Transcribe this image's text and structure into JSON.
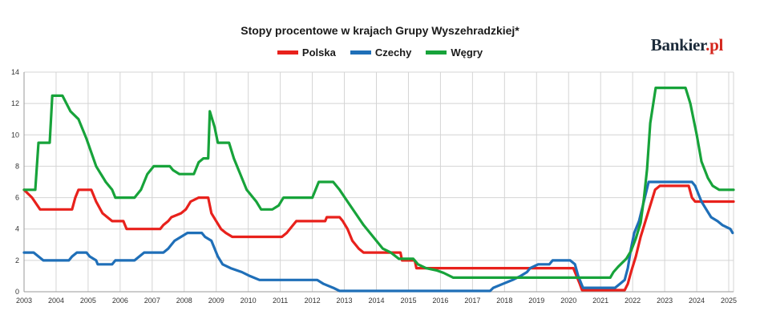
{
  "brand": {
    "name": "Bankier",
    "suffix": ".pl"
  },
  "chart_data": {
    "type": "line",
    "title": "Stopy procentowe w krajach  Grupy Wyszehradzkiej*",
    "xlabel": "",
    "ylabel": "",
    "xlim": [
      2003.0,
      2025.15
    ],
    "ylim": [
      0,
      14
    ],
    "grid": true,
    "legend_position": "top-center",
    "x_ticks": [
      "2003",
      "2004",
      "2005",
      "2006",
      "2007",
      "2008",
      "2009",
      "2010",
      "2011",
      "2012",
      "2013",
      "2014",
      "2015",
      "2016",
      "2017",
      "2018",
      "2019",
      "2020",
      "2021",
      "2022",
      "2023",
      "2024",
      "2025"
    ],
    "y_ticks": [
      "0",
      "2",
      "4",
      "6",
      "8",
      "10",
      "12",
      "14"
    ],
    "series": [
      {
        "name": "Polska",
        "color": "#e8211c",
        "points": [
          [
            2003.0,
            6.5
          ],
          [
            2003.25,
            6.0
          ],
          [
            2003.5,
            5.25
          ],
          [
            2004.5,
            5.25
          ],
          [
            2004.6,
            6.0
          ],
          [
            2004.7,
            6.5
          ],
          [
            2005.1,
            6.5
          ],
          [
            2005.25,
            5.75
          ],
          [
            2005.45,
            5.0
          ],
          [
            2005.6,
            4.75
          ],
          [
            2005.75,
            4.5
          ],
          [
            2006.1,
            4.5
          ],
          [
            2006.2,
            4.0
          ],
          [
            2007.25,
            4.0
          ],
          [
            2007.35,
            4.25
          ],
          [
            2007.5,
            4.5
          ],
          [
            2007.6,
            4.75
          ],
          [
            2007.9,
            5.0
          ],
          [
            2008.05,
            5.25
          ],
          [
            2008.2,
            5.75
          ],
          [
            2008.45,
            6.0
          ],
          [
            2008.75,
            6.0
          ],
          [
            2008.85,
            5.0
          ],
          [
            2009.0,
            4.5
          ],
          [
            2009.15,
            4.0
          ],
          [
            2009.3,
            3.75
          ],
          [
            2009.5,
            3.5
          ],
          [
            2011.05,
            3.5
          ],
          [
            2011.2,
            3.75
          ],
          [
            2011.4,
            4.25
          ],
          [
            2011.5,
            4.5
          ],
          [
            2012.4,
            4.5
          ],
          [
            2012.45,
            4.75
          ],
          [
            2012.85,
            4.75
          ],
          [
            2012.95,
            4.5
          ],
          [
            2013.1,
            4.0
          ],
          [
            2013.25,
            3.25
          ],
          [
            2013.45,
            2.75
          ],
          [
            2013.6,
            2.5
          ],
          [
            2014.75,
            2.5
          ],
          [
            2014.8,
            2.0
          ],
          [
            2015.2,
            2.0
          ],
          [
            2015.25,
            1.5
          ],
          [
            2020.15,
            1.5
          ],
          [
            2020.25,
            1.0
          ],
          [
            2020.35,
            0.5
          ],
          [
            2020.42,
            0.1
          ],
          [
            2021.75,
            0.1
          ],
          [
            2021.85,
            0.5
          ],
          [
            2021.95,
            1.25
          ],
          [
            2022.1,
            2.25
          ],
          [
            2022.25,
            3.5
          ],
          [
            2022.4,
            4.5
          ],
          [
            2022.55,
            5.5
          ],
          [
            2022.7,
            6.5
          ],
          [
            2022.85,
            6.75
          ],
          [
            2023.75,
            6.75
          ],
          [
            2023.85,
            6.0
          ],
          [
            2023.95,
            5.75
          ],
          [
            2025.15,
            5.75
          ]
        ]
      },
      {
        "name": "Czechy",
        "color": "#1f6fb8",
        "points": [
          [
            2003.0,
            2.5
          ],
          [
            2003.3,
            2.5
          ],
          [
            2003.45,
            2.25
          ],
          [
            2003.6,
            2.0
          ],
          [
            2004.4,
            2.0
          ],
          [
            2004.5,
            2.25
          ],
          [
            2004.65,
            2.5
          ],
          [
            2004.95,
            2.5
          ],
          [
            2005.05,
            2.25
          ],
          [
            2005.25,
            2.0
          ],
          [
            2005.3,
            1.75
          ],
          [
            2005.75,
            1.75
          ],
          [
            2005.85,
            2.0
          ],
          [
            2006.45,
            2.0
          ],
          [
            2006.6,
            2.25
          ],
          [
            2006.75,
            2.5
          ],
          [
            2007.35,
            2.5
          ],
          [
            2007.5,
            2.75
          ],
          [
            2007.6,
            3.0
          ],
          [
            2007.7,
            3.25
          ],
          [
            2007.9,
            3.5
          ],
          [
            2008.1,
            3.75
          ],
          [
            2008.55,
            3.75
          ],
          [
            2008.65,
            3.5
          ],
          [
            2008.85,
            3.25
          ],
          [
            2008.95,
            2.75
          ],
          [
            2009.05,
            2.25
          ],
          [
            2009.2,
            1.75
          ],
          [
            2009.45,
            1.5
          ],
          [
            2009.8,
            1.25
          ],
          [
            2010.05,
            1.0
          ],
          [
            2010.35,
            0.75
          ],
          [
            2012.15,
            0.75
          ],
          [
            2012.35,
            0.5
          ],
          [
            2012.65,
            0.25
          ],
          [
            2012.85,
            0.05
          ],
          [
            2017.55,
            0.05
          ],
          [
            2017.65,
            0.25
          ],
          [
            2017.95,
            0.5
          ],
          [
            2018.25,
            0.75
          ],
          [
            2018.5,
            1.0
          ],
          [
            2018.7,
            1.25
          ],
          [
            2018.8,
            1.5
          ],
          [
            2019.05,
            1.75
          ],
          [
            2019.4,
            1.75
          ],
          [
            2019.5,
            2.0
          ],
          [
            2020.05,
            2.0
          ],
          [
            2020.2,
            1.75
          ],
          [
            2020.3,
            1.0
          ],
          [
            2020.45,
            0.25
          ],
          [
            2021.45,
            0.25
          ],
          [
            2021.6,
            0.5
          ],
          [
            2021.75,
            0.75
          ],
          [
            2021.85,
            1.5
          ],
          [
            2021.95,
            2.75
          ],
          [
            2022.05,
            3.75
          ],
          [
            2022.2,
            4.5
          ],
          [
            2022.35,
            5.75
          ],
          [
            2022.5,
            7.0
          ],
          [
            2023.85,
            7.0
          ],
          [
            2023.95,
            6.75
          ],
          [
            2024.05,
            6.25
          ],
          [
            2024.15,
            5.75
          ],
          [
            2024.3,
            5.25
          ],
          [
            2024.45,
            4.75
          ],
          [
            2024.65,
            4.5
          ],
          [
            2024.8,
            4.25
          ],
          [
            2025.05,
            4.0
          ],
          [
            2025.12,
            3.75
          ]
        ]
      },
      {
        "name": "Węgry",
        "color": "#17a33a",
        "points": [
          [
            2003.0,
            6.5
          ],
          [
            2003.35,
            6.5
          ],
          [
            2003.45,
            9.5
          ],
          [
            2003.8,
            9.5
          ],
          [
            2003.88,
            12.5
          ],
          [
            2004.2,
            12.5
          ],
          [
            2004.45,
            11.5
          ],
          [
            2004.7,
            11.0
          ],
          [
            2004.95,
            9.75
          ],
          [
            2005.25,
            8.0
          ],
          [
            2005.55,
            7.0
          ],
          [
            2005.75,
            6.5
          ],
          [
            2005.85,
            6.0
          ],
          [
            2006.45,
            6.0
          ],
          [
            2006.65,
            6.5
          ],
          [
            2006.85,
            7.5
          ],
          [
            2007.05,
            8.0
          ],
          [
            2007.55,
            8.0
          ],
          [
            2007.65,
            7.75
          ],
          [
            2007.85,
            7.5
          ],
          [
            2008.3,
            7.5
          ],
          [
            2008.45,
            8.25
          ],
          [
            2008.6,
            8.5
          ],
          [
            2008.75,
            8.5
          ],
          [
            2008.8,
            11.5
          ],
          [
            2008.95,
            10.5
          ],
          [
            2009.05,
            9.5
          ],
          [
            2009.4,
            9.5
          ],
          [
            2009.55,
            8.5
          ],
          [
            2009.75,
            7.5
          ],
          [
            2009.95,
            6.5
          ],
          [
            2010.25,
            5.75
          ],
          [
            2010.4,
            5.25
          ],
          [
            2010.75,
            5.25
          ],
          [
            2010.95,
            5.5
          ],
          [
            2011.1,
            6.0
          ],
          [
            2012.0,
            6.0
          ],
          [
            2012.2,
            7.0
          ],
          [
            2012.65,
            7.0
          ],
          [
            2012.85,
            6.5
          ],
          [
            2013.1,
            5.75
          ],
          [
            2013.35,
            5.0
          ],
          [
            2013.6,
            4.25
          ],
          [
            2013.9,
            3.5
          ],
          [
            2014.2,
            2.75
          ],
          [
            2014.45,
            2.5
          ],
          [
            2014.7,
            2.1
          ],
          [
            2015.15,
            2.1
          ],
          [
            2015.3,
            1.75
          ],
          [
            2015.55,
            1.5
          ],
          [
            2015.9,
            1.35
          ],
          [
            2016.1,
            1.2
          ],
          [
            2016.4,
            0.9
          ],
          [
            2021.3,
            0.9
          ],
          [
            2021.4,
            1.25
          ],
          [
            2021.55,
            1.6
          ],
          [
            2021.8,
            2.1
          ],
          [
            2021.95,
            2.6
          ],
          [
            2022.1,
            3.4
          ],
          [
            2022.25,
            4.4
          ],
          [
            2022.35,
            5.9
          ],
          [
            2022.45,
            7.8
          ],
          [
            2022.55,
            10.75
          ],
          [
            2022.72,
            13.0
          ],
          [
            2023.65,
            13.0
          ],
          [
            2023.8,
            12.0
          ],
          [
            2024.0,
            10.0
          ],
          [
            2024.15,
            8.3
          ],
          [
            2024.35,
            7.25
          ],
          [
            2024.5,
            6.75
          ],
          [
            2024.7,
            6.5
          ],
          [
            2025.15,
            6.5
          ]
        ]
      }
    ]
  }
}
